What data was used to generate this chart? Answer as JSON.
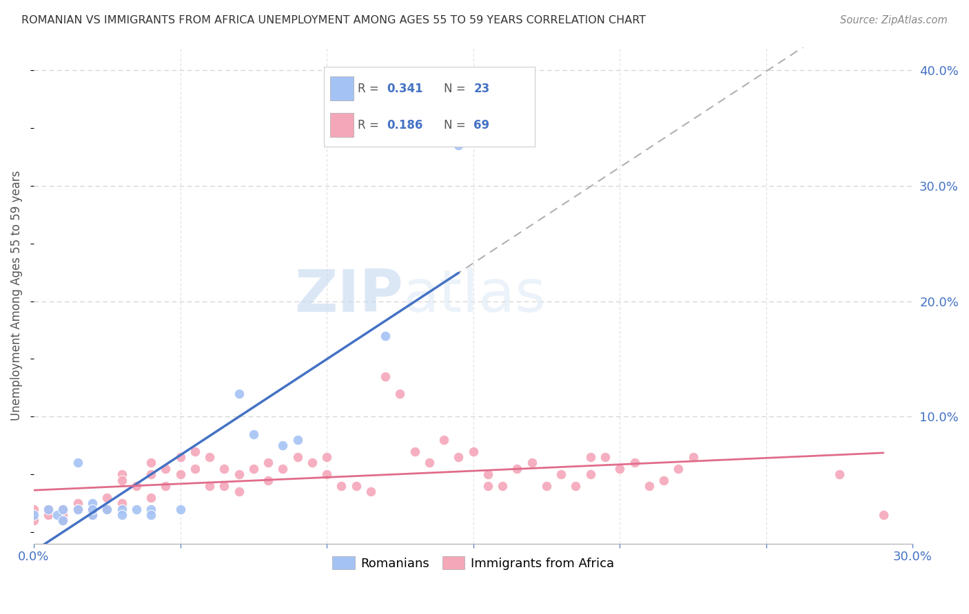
{
  "title": "ROMANIAN VS IMMIGRANTS FROM AFRICA UNEMPLOYMENT AMONG AGES 55 TO 59 YEARS CORRELATION CHART",
  "source": "Source: ZipAtlas.com",
  "ylabel": "Unemployment Among Ages 55 to 59 years",
  "xlim": [
    0.0,
    0.3
  ],
  "ylim": [
    -0.01,
    0.42
  ],
  "x_ticks": [
    0.0,
    0.05,
    0.1,
    0.15,
    0.2,
    0.25,
    0.3
  ],
  "x_tick_labels": [
    "0.0%",
    "",
    "",
    "",
    "",
    "",
    "30.0%"
  ],
  "y_ticks_right": [
    0.0,
    0.1,
    0.2,
    0.3,
    0.4
  ],
  "y_tick_labels_right": [
    "",
    "10.0%",
    "20.0%",
    "30.0%",
    "40.0%"
  ],
  "romanian_color": "#a4c2f4",
  "african_color": "#f4a7b9",
  "romanian_line_color": "#4472c4",
  "african_line_color": "#e06c8a",
  "dash_line_color": "#b0b0b0",
  "background_color": "#ffffff",
  "grid_color": "#d0d0d0",
  "watermark_color": "#dce9f8",
  "romanian_scatter_x": [
    0.0,
    0.005,
    0.008,
    0.01,
    0.01,
    0.015,
    0.015,
    0.02,
    0.02,
    0.02,
    0.025,
    0.03,
    0.03,
    0.035,
    0.04,
    0.04,
    0.05,
    0.07,
    0.075,
    0.085,
    0.09,
    0.12,
    0.145
  ],
  "romanian_scatter_y": [
    0.015,
    0.02,
    0.015,
    0.02,
    0.01,
    0.06,
    0.02,
    0.025,
    0.015,
    0.02,
    0.02,
    0.02,
    0.015,
    0.02,
    0.02,
    0.015,
    0.02,
    0.12,
    0.085,
    0.075,
    0.08,
    0.17,
    0.335
  ],
  "african_scatter_x": [
    0.0,
    0.0,
    0.005,
    0.005,
    0.01,
    0.01,
    0.01,
    0.015,
    0.015,
    0.02,
    0.02,
    0.025,
    0.025,
    0.03,
    0.03,
    0.03,
    0.035,
    0.04,
    0.04,
    0.04,
    0.045,
    0.045,
    0.05,
    0.05,
    0.055,
    0.055,
    0.06,
    0.06,
    0.065,
    0.065,
    0.07,
    0.07,
    0.075,
    0.08,
    0.08,
    0.085,
    0.09,
    0.095,
    0.1,
    0.1,
    0.105,
    0.11,
    0.115,
    0.12,
    0.125,
    0.13,
    0.135,
    0.14,
    0.145,
    0.15,
    0.155,
    0.155,
    0.16,
    0.165,
    0.17,
    0.175,
    0.18,
    0.185,
    0.19,
    0.19,
    0.195,
    0.2,
    0.205,
    0.21,
    0.215,
    0.22,
    0.225,
    0.275,
    0.29
  ],
  "african_scatter_y": [
    0.02,
    0.01,
    0.02,
    0.015,
    0.02,
    0.015,
    0.01,
    0.025,
    0.02,
    0.02,
    0.015,
    0.03,
    0.02,
    0.05,
    0.045,
    0.025,
    0.04,
    0.06,
    0.05,
    0.03,
    0.055,
    0.04,
    0.065,
    0.05,
    0.07,
    0.055,
    0.065,
    0.04,
    0.055,
    0.04,
    0.05,
    0.035,
    0.055,
    0.06,
    0.045,
    0.055,
    0.065,
    0.06,
    0.065,
    0.05,
    0.04,
    0.04,
    0.035,
    0.135,
    0.12,
    0.07,
    0.06,
    0.08,
    0.065,
    0.07,
    0.05,
    0.04,
    0.04,
    0.055,
    0.06,
    0.04,
    0.05,
    0.04,
    0.065,
    0.05,
    0.065,
    0.055,
    0.06,
    0.04,
    0.045,
    0.055,
    0.065,
    0.05,
    0.015
  ]
}
